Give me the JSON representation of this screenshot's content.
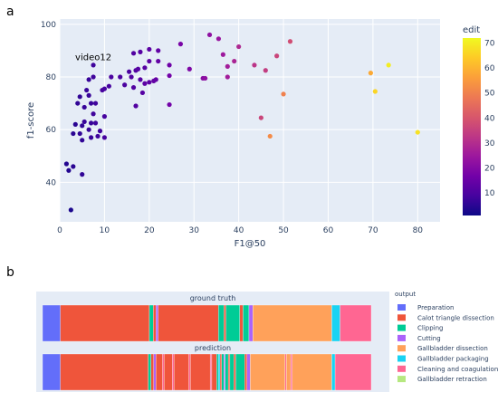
{
  "labels": {
    "panel_a": "a",
    "panel_b": "b"
  },
  "chart_data": [
    {
      "type": "scatter",
      "xlabel": "F1@50",
      "ylabel": "f1-score",
      "xlim": [
        0,
        85
      ],
      "ylim": [
        25,
        102
      ],
      "x_ticks": [
        0,
        10,
        20,
        30,
        40,
        50,
        60,
        70,
        80
      ],
      "y_ticks": [
        40,
        60,
        80,
        100
      ],
      "grid": true,
      "annotation": {
        "text": "video12",
        "x": 7.5,
        "y": 85
      },
      "colorbar": {
        "title": "edit",
        "min": 1,
        "max": 72,
        "ticks": [
          10,
          20,
          30,
          40,
          50,
          60,
          70
        ],
        "colorscale": [
          "#0d0887",
          "#46039f",
          "#7201a8",
          "#9c179e",
          "#bd3786",
          "#d8576b",
          "#ed7953",
          "#fb9f3a",
          "#fdca26",
          "#f0f921"
        ]
      },
      "points": [
        {
          "x": 2.5,
          "y": 29.5,
          "c": 3
        },
        {
          "x": 1.5,
          "y": 47,
          "c": 4
        },
        {
          "x": 2,
          "y": 44.5,
          "c": 4
        },
        {
          "x": 3,
          "y": 46,
          "c": 5
        },
        {
          "x": 3,
          "y": 58.5,
          "c": 5
        },
        {
          "x": 3.5,
          "y": 62,
          "c": 5
        },
        {
          "x": 4,
          "y": 70,
          "c": 6
        },
        {
          "x": 4.5,
          "y": 72.5,
          "c": 6
        },
        {
          "x": 4.5,
          "y": 58.5,
          "c": 6
        },
        {
          "x": 5,
          "y": 56,
          "c": 6
        },
        {
          "x": 5,
          "y": 61.5,
          "c": 6
        },
        {
          "x": 5,
          "y": 43,
          "c": 6
        },
        {
          "x": 5.5,
          "y": 68.5,
          "c": 7
        },
        {
          "x": 5.5,
          "y": 63,
          "c": 7
        },
        {
          "x": 6,
          "y": 75,
          "c": 7
        },
        {
          "x": 6.5,
          "y": 79,
          "c": 7
        },
        {
          "x": 6.5,
          "y": 73,
          "c": 7
        },
        {
          "x": 6.5,
          "y": 60,
          "c": 7
        },
        {
          "x": 7,
          "y": 70,
          "c": 7
        },
        {
          "x": 7,
          "y": 62.5,
          "c": 7
        },
        {
          "x": 7,
          "y": 57,
          "c": 7
        },
        {
          "x": 7.5,
          "y": 84.5,
          "c": 8
        },
        {
          "x": 7.5,
          "y": 80,
          "c": 8
        },
        {
          "x": 7.5,
          "y": 66,
          "c": 8
        },
        {
          "x": 8,
          "y": 62.5,
          "c": 8
        },
        {
          "x": 8,
          "y": 70,
          "c": 8
        },
        {
          "x": 8.5,
          "y": 57.5,
          "c": 8
        },
        {
          "x": 9,
          "y": 59.5,
          "c": 8
        },
        {
          "x": 9.5,
          "y": 75,
          "c": 9
        },
        {
          "x": 10,
          "y": 75.5,
          "c": 9
        },
        {
          "x": 10,
          "y": 65,
          "c": 9
        },
        {
          "x": 10,
          "y": 57,
          "c": 9
        },
        {
          "x": 11,
          "y": 76.5,
          "c": 9
        },
        {
          "x": 11.5,
          "y": 80,
          "c": 10
        },
        {
          "x": 13.5,
          "y": 80,
          "c": 10
        },
        {
          "x": 14.5,
          "y": 77,
          "c": 10
        },
        {
          "x": 15.5,
          "y": 82,
          "c": 10
        },
        {
          "x": 16,
          "y": 80,
          "c": 11
        },
        {
          "x": 16.5,
          "y": 76,
          "c": 11
        },
        {
          "x": 16.5,
          "y": 89,
          "c": 11
        },
        {
          "x": 17,
          "y": 82.5,
          "c": 11
        },
        {
          "x": 17,
          "y": 69,
          "c": 11
        },
        {
          "x": 17.5,
          "y": 83,
          "c": 12
        },
        {
          "x": 18,
          "y": 89.5,
          "c": 12
        },
        {
          "x": 18,
          "y": 79,
          "c": 12
        },
        {
          "x": 18.5,
          "y": 74,
          "c": 12
        },
        {
          "x": 19,
          "y": 83.5,
          "c": 12
        },
        {
          "x": 19,
          "y": 77.5,
          "c": 13
        },
        {
          "x": 20,
          "y": 90.5,
          "c": 13
        },
        {
          "x": 20,
          "y": 78,
          "c": 13
        },
        {
          "x": 20,
          "y": 86,
          "c": 13
        },
        {
          "x": 21,
          "y": 78.5,
          "c": 14
        },
        {
          "x": 21.5,
          "y": 79,
          "c": 14
        },
        {
          "x": 22,
          "y": 90,
          "c": 14
        },
        {
          "x": 22,
          "y": 86,
          "c": 14
        },
        {
          "x": 24.5,
          "y": 84.5,
          "c": 16
        },
        {
          "x": 24.5,
          "y": 80.5,
          "c": 17
        },
        {
          "x": 24.5,
          "y": 69.5,
          "c": 17
        },
        {
          "x": 27,
          "y": 92.5,
          "c": 18
        },
        {
          "x": 29,
          "y": 83,
          "c": 19
        },
        {
          "x": 32,
          "y": 79.5,
          "c": 21
        },
        {
          "x": 32.5,
          "y": 79.5,
          "c": 22
        },
        {
          "x": 33.5,
          "y": 96,
          "c": 22
        },
        {
          "x": 35.5,
          "y": 94.5,
          "c": 24
        },
        {
          "x": 36.5,
          "y": 88.5,
          "c": 25
        },
        {
          "x": 37.5,
          "y": 84,
          "c": 26
        },
        {
          "x": 37.5,
          "y": 80,
          "c": 26
        },
        {
          "x": 39,
          "y": 86,
          "c": 28
        },
        {
          "x": 40,
          "y": 91.5,
          "c": 29
        },
        {
          "x": 43.5,
          "y": 84.5,
          "c": 32
        },
        {
          "x": 45,
          "y": 64.5,
          "c": 36
        },
        {
          "x": 46,
          "y": 82.5,
          "c": 34
        },
        {
          "x": 47,
          "y": 57.5,
          "c": 52
        },
        {
          "x": 48.5,
          "y": 88,
          "c": 36
        },
        {
          "x": 50,
          "y": 73.5,
          "c": 50
        },
        {
          "x": 51.5,
          "y": 93.5,
          "c": 38
        },
        {
          "x": 69.5,
          "y": 81.5,
          "c": 58
        },
        {
          "x": 70.5,
          "y": 74.5,
          "c": 66
        },
        {
          "x": 73.5,
          "y": 84.5,
          "c": 70
        },
        {
          "x": 80,
          "y": 59,
          "c": 68
        }
      ]
    },
    {
      "type": "bar",
      "subtype": "phase-timeline",
      "tracks": [
        {
          "title": "ground truth",
          "segments": [
            {
              "phase": 0,
              "start": 0,
              "end": 0.054
            },
            {
              "phase": 1,
              "start": 0.054,
              "end": 0.325
            },
            {
              "phase": 2,
              "start": 0.325,
              "end": 0.337
            },
            {
              "phase": 1,
              "start": 0.337,
              "end": 0.345
            },
            {
              "phase": 3,
              "start": 0.345,
              "end": 0.352
            },
            {
              "phase": 1,
              "start": 0.352,
              "end": 0.535
            },
            {
              "phase": 2,
              "start": 0.535,
              "end": 0.552
            },
            {
              "phase": 1,
              "start": 0.552,
              "end": 0.558
            },
            {
              "phase": 2,
              "start": 0.558,
              "end": 0.6
            },
            {
              "phase": 1,
              "start": 0.6,
              "end": 0.61
            },
            {
              "phase": 2,
              "start": 0.61,
              "end": 0.628
            },
            {
              "phase": 3,
              "start": 0.628,
              "end": 0.64
            },
            {
              "phase": 4,
              "start": 0.64,
              "end": 0.88
            },
            {
              "phase": 5,
              "start": 0.88,
              "end": 0.905
            },
            {
              "phase": 6,
              "start": 0.905,
              "end": 1.0
            }
          ]
        },
        {
          "title": "prediction",
          "segments": [
            {
              "phase": 0,
              "start": 0,
              "end": 0.054
            },
            {
              "phase": 1,
              "start": 0.054,
              "end": 0.322
            },
            {
              "phase": 2,
              "start": 0.322,
              "end": 0.33
            },
            {
              "phase": 1,
              "start": 0.33,
              "end": 0.338
            },
            {
              "phase": 3,
              "start": 0.338,
              "end": 0.345
            },
            {
              "phase": 1,
              "start": 0.345,
              "end": 0.365
            },
            {
              "phase": 6,
              "start": 0.365,
              "end": 0.37
            },
            {
              "phase": 1,
              "start": 0.37,
              "end": 0.395
            },
            {
              "phase": 6,
              "start": 0.395,
              "end": 0.4
            },
            {
              "phase": 1,
              "start": 0.4,
              "end": 0.445
            },
            {
              "phase": 6,
              "start": 0.445,
              "end": 0.45
            },
            {
              "phase": 1,
              "start": 0.45,
              "end": 0.51
            },
            {
              "phase": 6,
              "start": 0.51,
              "end": 0.515
            },
            {
              "phase": 1,
              "start": 0.515,
              "end": 0.53
            },
            {
              "phase": 2,
              "start": 0.53,
              "end": 0.535
            },
            {
              "phase": 5,
              "start": 0.535,
              "end": 0.54
            },
            {
              "phase": 1,
              "start": 0.54,
              "end": 0.545
            },
            {
              "phase": 2,
              "start": 0.545,
              "end": 0.552
            },
            {
              "phase": 3,
              "start": 0.552,
              "end": 0.556
            },
            {
              "phase": 2,
              "start": 0.556,
              "end": 0.565
            },
            {
              "phase": 1,
              "start": 0.565,
              "end": 0.57
            },
            {
              "phase": 2,
              "start": 0.57,
              "end": 0.582
            },
            {
              "phase": 1,
              "start": 0.582,
              "end": 0.588
            },
            {
              "phase": 2,
              "start": 0.588,
              "end": 0.615
            },
            {
              "phase": 1,
              "start": 0.615,
              "end": 0.622
            },
            {
              "phase": 3,
              "start": 0.622,
              "end": 0.632
            },
            {
              "phase": 4,
              "start": 0.632,
              "end": 0.738
            },
            {
              "phase": 6,
              "start": 0.738,
              "end": 0.742
            },
            {
              "phase": 4,
              "start": 0.742,
              "end": 0.755
            },
            {
              "phase": 6,
              "start": 0.755,
              "end": 0.76
            },
            {
              "phase": 4,
              "start": 0.76,
              "end": 0.88
            },
            {
              "phase": 5,
              "start": 0.88,
              "end": 0.89
            },
            {
              "phase": 6,
              "start": 0.89,
              "end": 1.0
            }
          ]
        }
      ],
      "legend": {
        "title": "output",
        "items": [
          {
            "name": "Preparation",
            "color": "#636efa"
          },
          {
            "name": "Calot triangle dissection",
            "color": "#ef553b"
          },
          {
            "name": "Clipping",
            "color": "#00cc96"
          },
          {
            "name": "Cutting",
            "color": "#ab63fa"
          },
          {
            "name": "Gallbladder dissection",
            "color": "#ffa15a"
          },
          {
            "name": "Gallbladder packaging",
            "color": "#19d3f3"
          },
          {
            "name": "Cleaning and coagulation",
            "color": "#ff6692"
          },
          {
            "name": "Gallbladder retraction",
            "color": "#b6e880"
          }
        ]
      }
    }
  ]
}
